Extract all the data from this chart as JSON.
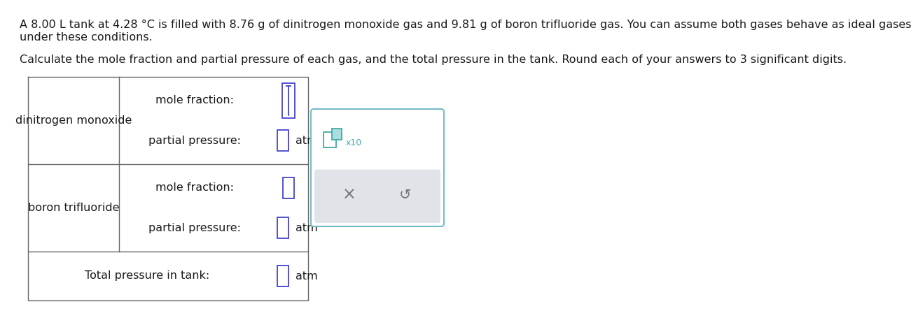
{
  "title_line1": "A 8.00 L tank at 4.28 °C is filled with 8.76 g of dinitrogen monoxide gas and 9.81 g of boron trifluoride gas. You can assume both gases behave as ideal gases",
  "title_line2": "under these conditions.",
  "subtitle": "Calculate the mole fraction and partial pressure of each gas, and the total pressure in the tank. Round each of your answers to 3 significant digits.",
  "gas1_name": "dinitrogen monoxide",
  "gas2_name": "boron trifluoride",
  "label_mole_fraction": "mole fraction:",
  "label_partial_pressure": "partial pressure:",
  "label_total": "Total pressure in tank:",
  "unit_atm": "atm",
  "bg_color": "#ffffff",
  "table_border_color": "#666666",
  "input_box_color": "#4444cc",
  "input_box_fill": "#ffffff",
  "popup_border_color": "#77bbcc",
  "popup_bg": "#ffffff",
  "popup_btn_bg": "#e0e4e8",
  "x10_color": "#44aaaa",
  "x_icon_color": "#777777",
  "refresh_color": "#777777",
  "text_color": "#1a1a1a",
  "font_size_body": 11.5
}
